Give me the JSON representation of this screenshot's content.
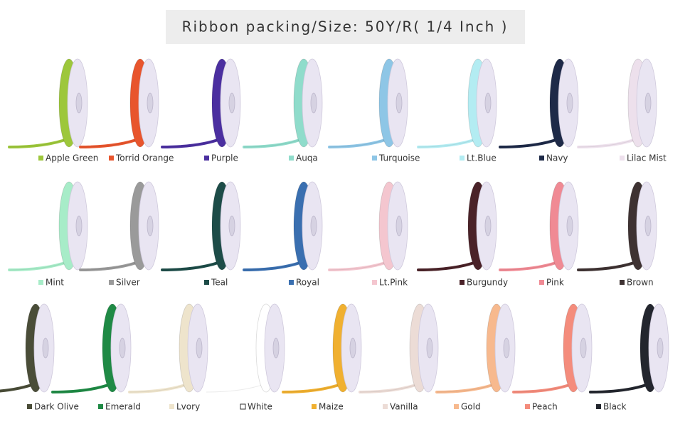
{
  "header": {
    "title": "Ribbon packing/Size: 50Y/R( 1/4 Inch )"
  },
  "items": [
    {
      "label": "Apple Green",
      "color": "#9dc73b"
    },
    {
      "label": "Torrid Orange",
      "color": "#e8552d"
    },
    {
      "label": "Purple",
      "color": "#4b2fa0"
    },
    {
      "label": "Auqa",
      "color": "#8fdccb"
    },
    {
      "label": "Turquoise",
      "color": "#8ec6e6"
    },
    {
      "label": "Lt.Blue",
      "color": "#b3ecf2"
    },
    {
      "label": "Navy",
      "color": "#1e2a48"
    },
    {
      "label": "Lilac Mist",
      "color": "#ede0ec"
    },
    {
      "label": "Mint",
      "color": "#a7ecc8"
    },
    {
      "label": "Silver",
      "color": "#9a9a9a"
    },
    {
      "label": "Teal",
      "color": "#1d4c48"
    },
    {
      "label": "Royal",
      "color": "#3a6fb0"
    },
    {
      "label": "Lt.Pink",
      "color": "#f4c6cf"
    },
    {
      "label": "Burgundy",
      "color": "#4a2228"
    },
    {
      "label": "Pink",
      "color": "#f08a94"
    },
    {
      "label": "Brown",
      "color": "#3e3232"
    },
    {
      "label": "Dark Olive",
      "color": "#4a4d38"
    },
    {
      "label": "Emerald",
      "color": "#1f8a45"
    },
    {
      "label": "Lvory",
      "color": "#eee4cc"
    },
    {
      "label": "White",
      "color": "#ffffff"
    },
    {
      "label": "Maize",
      "color": "#f0b030"
    },
    {
      "label": "Vanilla",
      "color": "#ecdcd6"
    },
    {
      "label": "Gold",
      "color": "#f7b98e"
    },
    {
      "label": "Peach",
      "color": "#f48c7c"
    },
    {
      "label": "Black",
      "color": "#23262e"
    }
  ]
}
